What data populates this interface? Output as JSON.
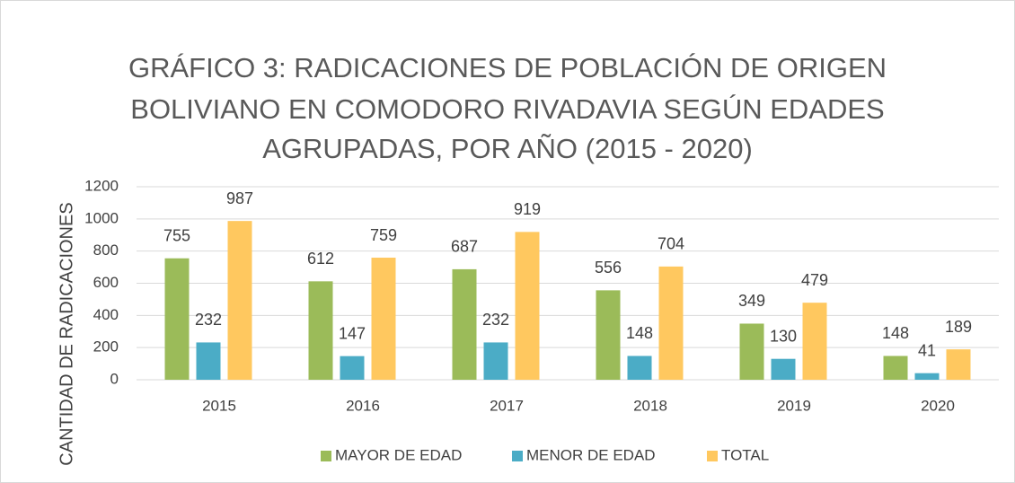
{
  "chart_data": {
    "type": "bar",
    "title": [
      "GRÁFICO 3: RADICACIONES DE POBLACIÓN DE ORIGEN",
      "BOLIVIANO EN COMODORO RIVADAVIA SEGÚN EDADES",
      "AGRUPADAS, POR AÑO (2015 - 2020)"
    ],
    "y_label": "CANTIDAD DE RADICACIONES",
    "categories": [
      "2015",
      "2016",
      "2017",
      "2018",
      "2019",
      "2020"
    ],
    "series": [
      {
        "name": "MAYOR DE EDAD",
        "color": "#9bbb59",
        "values": [
          755,
          612,
          687,
          556,
          349,
          148
        ]
      },
      {
        "name": "MENOR DE EDAD",
        "color": "#4bacc6",
        "values": [
          232,
          147,
          232,
          148,
          130,
          41
        ]
      },
      {
        "name": "TOTAL",
        "color": "#ffc85f",
        "values": [
          987,
          759,
          919,
          704,
          479,
          189
        ]
      }
    ],
    "ylim": [
      0,
      1200
    ],
    "yticks": [
      0,
      200,
      400,
      600,
      800,
      1000,
      1200
    ],
    "grid": true,
    "legend": "bottom"
  }
}
